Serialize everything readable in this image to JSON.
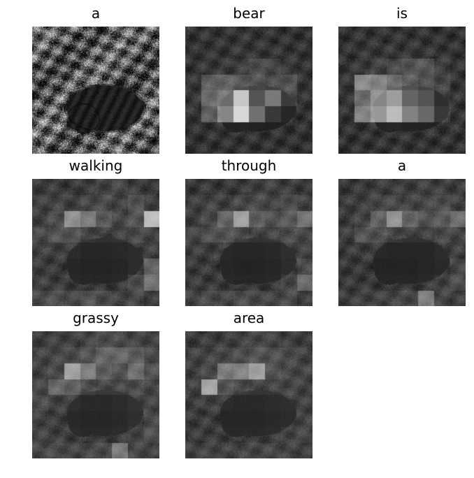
{
  "figure": {
    "panels": [
      {
        "word": "a",
        "image": "original-photo-bear-in-grass",
        "attention": null
      },
      {
        "word": "bear",
        "image": "attention-map",
        "attention": [
          [
            0.05,
            0.08,
            0.06,
            0.08,
            0.07,
            0.07,
            0.06,
            0.05
          ],
          [
            0.07,
            0.09,
            0.08,
            0.1,
            0.09,
            0.08,
            0.07,
            0.06
          ],
          [
            0.08,
            0.1,
            0.12,
            0.16,
            0.26,
            0.22,
            0.12,
            0.07
          ],
          [
            0.1,
            0.36,
            0.4,
            0.34,
            0.3,
            0.26,
            0.3,
            0.08
          ],
          [
            0.1,
            0.44,
            0.5,
            0.88,
            0.38,
            0.56,
            0.24,
            0.08
          ],
          [
            0.08,
            0.36,
            0.62,
            0.94,
            0.52,
            0.22,
            0.1,
            0.06
          ],
          [
            0.06,
            0.06,
            0.08,
            0.08,
            0.07,
            0.06,
            0.06,
            0.05
          ],
          [
            0.05,
            0.05,
            0.06,
            0.06,
            0.05,
            0.05,
            0.05,
            0.05
          ]
        ]
      },
      {
        "word": "is",
        "image": "attention-map",
        "attention": [
          [
            0.06,
            0.07,
            0.07,
            0.08,
            0.07,
            0.07,
            0.06,
            0.06
          ],
          [
            0.07,
            0.09,
            0.09,
            0.1,
            0.1,
            0.09,
            0.08,
            0.07
          ],
          [
            0.08,
            0.12,
            0.18,
            0.24,
            0.3,
            0.32,
            0.16,
            0.08
          ],
          [
            0.09,
            0.6,
            0.56,
            0.46,
            0.36,
            0.28,
            0.22,
            0.08
          ],
          [
            0.09,
            0.44,
            0.62,
            0.72,
            0.46,
            0.38,
            0.16,
            0.08
          ],
          [
            0.08,
            0.56,
            0.7,
            0.84,
            0.6,
            0.48,
            0.22,
            0.07
          ],
          [
            0.06,
            0.06,
            0.08,
            0.1,
            0.08,
            0.07,
            0.06,
            0.06
          ],
          [
            0.05,
            0.05,
            0.06,
            0.06,
            0.06,
            0.05,
            0.05,
            0.05
          ]
        ]
      },
      {
        "word": "walking",
        "image": "attention-map",
        "attention": [
          [
            0.12,
            0.14,
            0.1,
            0.14,
            0.18,
            0.22,
            0.14,
            0.12
          ],
          [
            0.18,
            0.2,
            0.16,
            0.22,
            0.24,
            0.18,
            0.3,
            0.16
          ],
          [
            0.16,
            0.26,
            0.62,
            0.52,
            0.34,
            0.22,
            0.3,
            0.82
          ],
          [
            0.24,
            0.3,
            0.3,
            0.2,
            0.16,
            0.18,
            0.24,
            0.2
          ],
          [
            0.18,
            0.16,
            0.14,
            0.1,
            0.1,
            0.12,
            0.14,
            0.16
          ],
          [
            0.14,
            0.12,
            0.1,
            0.08,
            0.08,
            0.1,
            0.14,
            0.4
          ],
          [
            0.16,
            0.14,
            0.12,
            0.1,
            0.1,
            0.12,
            0.26,
            0.48
          ],
          [
            0.24,
            0.28,
            0.22,
            0.3,
            0.24,
            0.18,
            0.22,
            0.14
          ]
        ]
      },
      {
        "word": "through",
        "image": "attention-map",
        "attention": [
          [
            0.1,
            0.12,
            0.1,
            0.12,
            0.16,
            0.18,
            0.14,
            0.12
          ],
          [
            0.16,
            0.2,
            0.16,
            0.22,
            0.24,
            0.2,
            0.26,
            0.18
          ],
          [
            0.14,
            0.22,
            0.4,
            0.7,
            0.36,
            0.3,
            0.34,
            0.48
          ],
          [
            0.22,
            0.28,
            0.3,
            0.24,
            0.18,
            0.2,
            0.26,
            0.22
          ],
          [
            0.16,
            0.14,
            0.12,
            0.1,
            0.1,
            0.12,
            0.16,
            0.18
          ],
          [
            0.12,
            0.12,
            0.1,
            0.08,
            0.08,
            0.1,
            0.14,
            0.26
          ],
          [
            0.14,
            0.12,
            0.12,
            0.1,
            0.1,
            0.12,
            0.22,
            0.44
          ],
          [
            0.2,
            0.24,
            0.2,
            0.26,
            0.22,
            0.2,
            0.24,
            0.16
          ]
        ]
      },
      {
        "word": "a",
        "image": "attention-map",
        "attention": [
          [
            0.1,
            0.12,
            0.14,
            0.16,
            0.14,
            0.18,
            0.16,
            0.14
          ],
          [
            0.14,
            0.16,
            0.22,
            0.24,
            0.2,
            0.22,
            0.26,
            0.18
          ],
          [
            0.12,
            0.2,
            0.38,
            0.64,
            0.4,
            0.3,
            0.34,
            0.46
          ],
          [
            0.16,
            0.3,
            0.28,
            0.22,
            0.18,
            0.18,
            0.24,
            0.2
          ],
          [
            0.12,
            0.14,
            0.12,
            0.1,
            0.1,
            0.1,
            0.14,
            0.16
          ],
          [
            0.1,
            0.1,
            0.08,
            0.08,
            0.08,
            0.1,
            0.12,
            0.22
          ],
          [
            0.12,
            0.12,
            0.1,
            0.1,
            0.1,
            0.12,
            0.18,
            0.26
          ],
          [
            0.16,
            0.18,
            0.18,
            0.2,
            0.22,
            0.54,
            0.2,
            0.16
          ]
        ]
      },
      {
        "word": "grassy",
        "image": "attention-map",
        "attention": [
          [
            0.14,
            0.18,
            0.16,
            0.22,
            0.26,
            0.24,
            0.2,
            0.18
          ],
          [
            0.2,
            0.22,
            0.24,
            0.3,
            0.4,
            0.42,
            0.36,
            0.24
          ],
          [
            0.18,
            0.24,
            0.7,
            0.54,
            0.36,
            0.3,
            0.46,
            0.3
          ],
          [
            0.22,
            0.42,
            0.38,
            0.26,
            0.22,
            0.22,
            0.26,
            0.22
          ],
          [
            0.26,
            0.18,
            0.16,
            0.12,
            0.12,
            0.14,
            0.18,
            0.2
          ],
          [
            0.18,
            0.14,
            0.12,
            0.1,
            0.1,
            0.12,
            0.16,
            0.24
          ],
          [
            0.2,
            0.16,
            0.14,
            0.12,
            0.12,
            0.14,
            0.2,
            0.28
          ],
          [
            0.22,
            0.24,
            0.2,
            0.22,
            0.24,
            0.52,
            0.22,
            0.18
          ]
        ]
      },
      {
        "word": "area",
        "image": "attention-map",
        "attention": [
          [
            0.12,
            0.14,
            0.14,
            0.18,
            0.22,
            0.2,
            0.16,
            0.14
          ],
          [
            0.18,
            0.2,
            0.22,
            0.26,
            0.3,
            0.28,
            0.24,
            0.18
          ],
          [
            0.16,
            0.24,
            0.52,
            0.56,
            0.7,
            0.3,
            0.22,
            0.2
          ],
          [
            0.18,
            0.72,
            0.3,
            0.24,
            0.2,
            0.2,
            0.22,
            0.18
          ],
          [
            0.14,
            0.18,
            0.14,
            0.12,
            0.12,
            0.14,
            0.16,
            0.18
          ],
          [
            0.12,
            0.12,
            0.1,
            0.1,
            0.1,
            0.12,
            0.14,
            0.2
          ],
          [
            0.14,
            0.14,
            0.12,
            0.12,
            0.12,
            0.14,
            0.2,
            0.22
          ],
          [
            0.18,
            0.2,
            0.18,
            0.2,
            0.2,
            0.22,
            0.18,
            0.16
          ]
        ]
      }
    ]
  }
}
